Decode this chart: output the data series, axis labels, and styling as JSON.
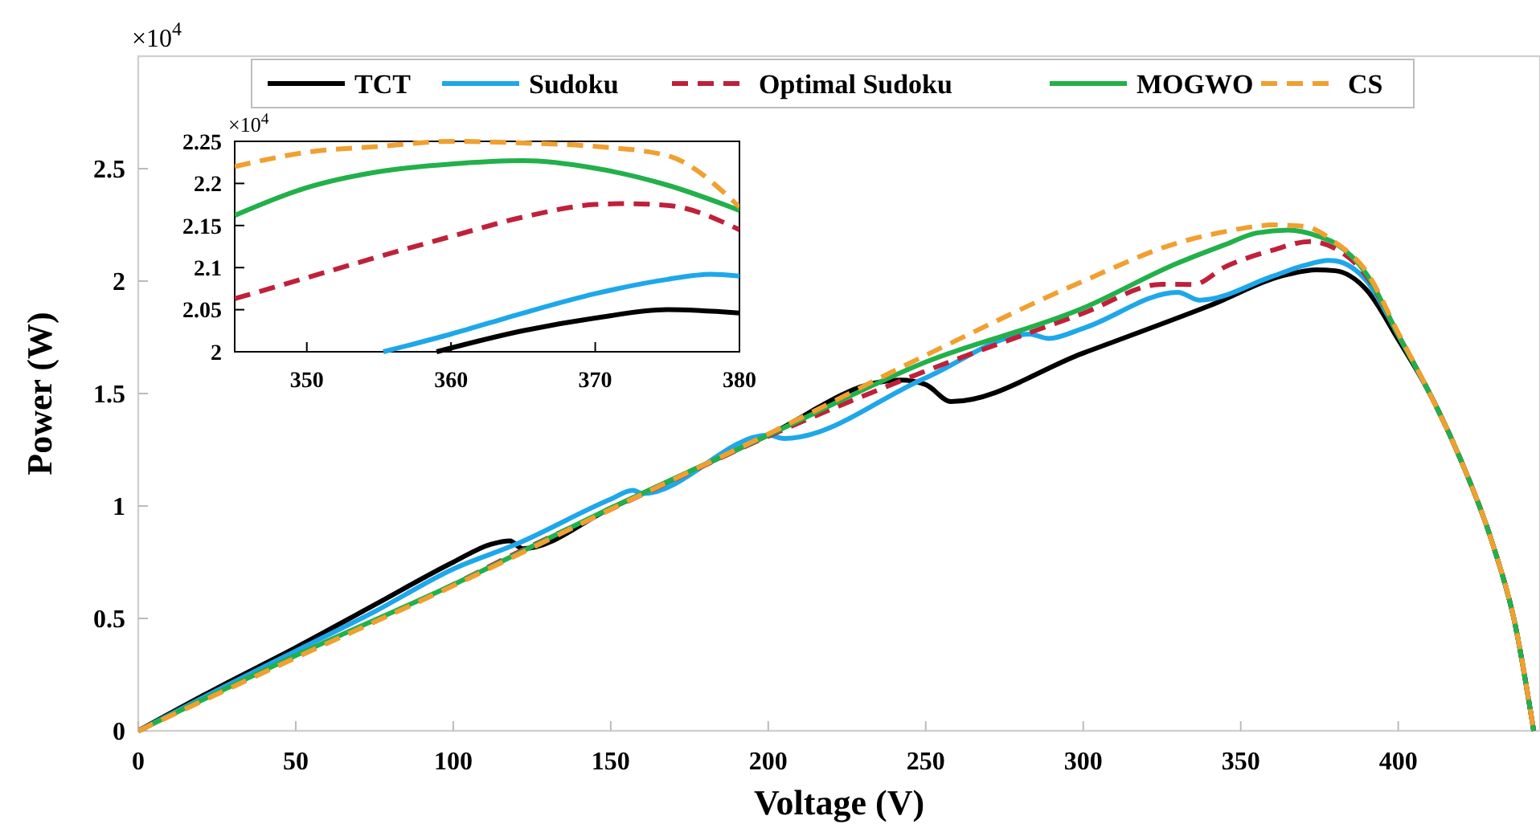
{
  "chart_data": [
    {
      "type": "line",
      "xlabel": "Voltage (V)",
      "ylabel": "Power (W)",
      "annotations": [
        "×10$^{4}$"
      ],
      "xlim": [
        0,
        445
      ],
      "ylim": [
        0,
        3
      ],
      "xticks": [
        0,
        50,
        100,
        150,
        200,
        250,
        300,
        350,
        400
      ],
      "yticks": [
        0,
        0.5,
        1,
        1.5,
        2,
        2.5
      ],
      "grid": false,
      "legend": "top",
      "marker": "none",
      "series": [
        {
          "name": "TCT",
          "color": "#000000",
          "line_style": "solid",
          "x": [
            0,
            25,
            50,
            75,
            100,
            112,
            118,
            122,
            150,
            200,
            235,
            242,
            250,
            258,
            300,
            340,
            365,
            374,
            380,
            390,
            400,
            410,
            420,
            430,
            437,
            443
          ],
          "values": [
            0,
            0.19,
            0.37,
            0.56,
            0.75,
            0.83,
            0.845,
            0.81,
            0.99,
            1.315,
            1.55,
            1.56,
            1.54,
            1.464,
            1.68,
            1.89,
            2.03,
            2.05,
            2.046,
            1.96,
            1.74,
            1.5,
            1.2,
            0.83,
            0.48,
            0
          ]
        },
        {
          "name": "Sudoku",
          "color": "#1ea7ea",
          "line_style": "solid",
          "x": [
            0,
            25,
            50,
            75,
            100,
            120,
            150,
            157,
            160,
            200,
            205,
            250,
            283,
            289,
            300,
            330,
            337,
            360,
            370,
            378,
            380,
            390,
            400,
            410
          ],
          "values": [
            0,
            0.18,
            0.355,
            0.53,
            0.72,
            0.83,
            1.03,
            1.07,
            1.055,
            1.315,
            1.3,
            1.57,
            1.764,
            1.745,
            1.79,
            1.95,
            1.915,
            2.021,
            2.069,
            2.092,
            2.09,
            2.0,
            1.76,
            1.5
          ]
        },
        {
          "name": "Optimal Sudoku",
          "color": "#c0203a",
          "line_style": "dashed",
          "x": [
            0,
            50,
            100,
            120,
            150,
            200,
            250,
            300,
            325,
            335,
            345,
            360,
            372,
            380,
            390,
            400,
            410,
            420,
            430,
            437,
            443
          ],
          "values": [
            0,
            0.33,
            0.65,
            0.79,
            0.985,
            1.31,
            1.6,
            1.857,
            1.986,
            1.985,
            2.063,
            2.137,
            2.176,
            2.145,
            2.02,
            1.76,
            1.5,
            1.2,
            0.83,
            0.48,
            0
          ]
        },
        {
          "name": "MOGWO",
          "color": "#22b04a",
          "line_style": "solid",
          "x": [
            0,
            50,
            100,
            150,
            200,
            250,
            300,
            330,
            345,
            355,
            365,
            375,
            380,
            390,
            400,
            410,
            420,
            430,
            437,
            443
          ],
          "values": [
            0,
            0.335,
            0.65,
            0.99,
            1.315,
            1.64,
            1.88,
            2.08,
            2.162,
            2.214,
            2.227,
            2.198,
            2.168,
            2.03,
            1.76,
            1.5,
            1.2,
            0.83,
            0.48,
            0
          ]
        },
        {
          "name": "CS",
          "color": "#f0a030",
          "line_style": "dashed",
          "x": [
            0,
            50,
            100,
            150,
            200,
            250,
            300,
            330,
            345,
            355,
            360,
            370,
            380,
            390,
            400,
            410,
            420,
            430,
            437,
            443
          ],
          "values": [
            0,
            0.325,
            0.645,
            0.985,
            1.32,
            1.67,
            2.0,
            2.17,
            2.22,
            2.244,
            2.25,
            2.244,
            2.172,
            2.04,
            1.77,
            1.5,
            1.2,
            0.83,
            0.48,
            0
          ]
        }
      ]
    },
    {
      "type": "line",
      "annotations": [
        "×10$^{4}$"
      ],
      "xlim": [
        345,
        380
      ],
      "ylim": [
        2,
        2.25
      ],
      "xticks": [
        350,
        360,
        370,
        380
      ],
      "yticks": [
        2,
        2.05,
        2.1,
        2.15,
        2.2,
        2.25
      ],
      "grid": false,
      "marker": "none",
      "series": [
        {
          "color": "#000000",
          "line_style": "solid",
          "x": [
            359,
            365,
            370,
            375,
            380
          ],
          "values": [
            2.0,
            2.025,
            2.04,
            2.05,
            2.046
          ]
        },
        {
          "color": "#1ea7ea",
          "line_style": "solid",
          "x": [
            355.3,
            360,
            365,
            370,
            375,
            378,
            380
          ],
          "values": [
            2.0,
            2.021,
            2.046,
            2.069,
            2.086,
            2.092,
            2.09
          ]
        },
        {
          "color": "#c0203a",
          "line_style": "dashed",
          "x": [
            345,
            350,
            355,
            360,
            365,
            370,
            372,
            375,
            380
          ],
          "values": [
            2.063,
            2.088,
            2.113,
            2.137,
            2.16,
            2.175,
            2.176,
            2.174,
            2.145
          ]
        },
        {
          "color": "#22b04a",
          "line_style": "solid",
          "x": [
            345,
            350,
            355,
            360,
            365,
            370,
            375,
            380
          ],
          "values": [
            2.162,
            2.195,
            2.214,
            2.223,
            2.227,
            2.218,
            2.198,
            2.168
          ]
        },
        {
          "color": "#f0a030",
          "line_style": "dashed",
          "x": [
            345,
            350,
            355,
            360,
            365,
            370,
            375,
            380
          ],
          "values": [
            2.22,
            2.237,
            2.244,
            2.25,
            2.248,
            2.244,
            2.233,
            2.172
          ]
        }
      ]
    }
  ]
}
